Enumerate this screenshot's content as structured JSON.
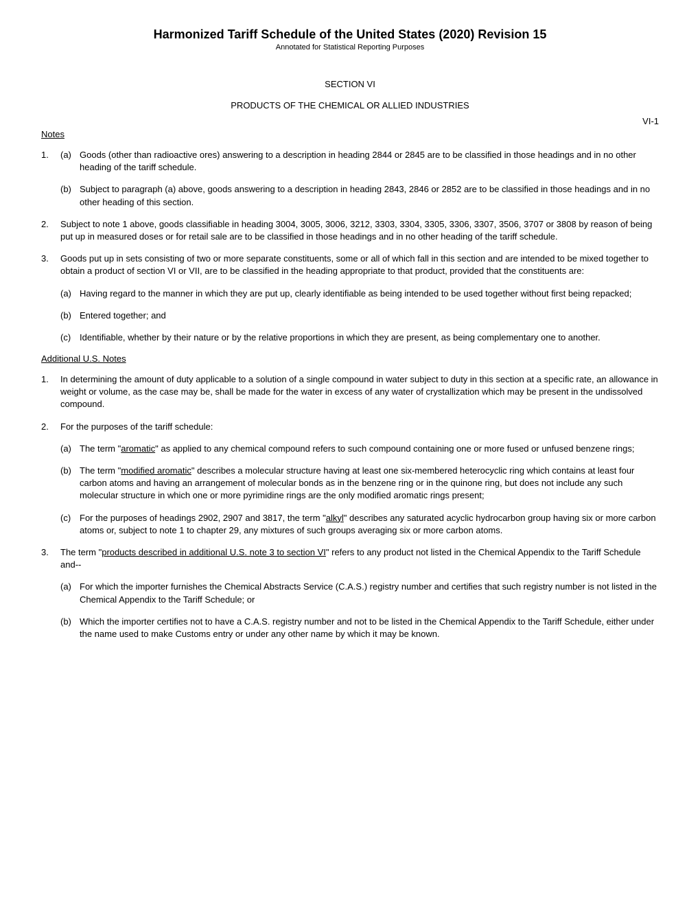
{
  "header": {
    "title": "Harmonized Tariff Schedule of the United States (2020) Revision 15",
    "subtitle": "Annotated for Statistical Reporting Purposes"
  },
  "section": {
    "label": "SECTION VI",
    "heading": "PRODUCTS OF THE CHEMICAL OR ALLIED INDUSTRIES",
    "page_num": "VI-1"
  },
  "notes_heading": "Notes",
  "notes": [
    {
      "num": "1.",
      "subs": [
        {
          "letter": "(a)",
          "text": "Goods (other than radioactive ores) answering to a description in heading 2844 or 2845 are to be classified in those headings and in no other heading of the tariff schedule."
        },
        {
          "letter": "(b)",
          "text": "Subject to paragraph (a) above, goods answering to a description in heading 2843, 2846 or 2852 are to be classified in those headings and in no other heading of this section."
        }
      ]
    },
    {
      "num": "2.",
      "text": "Subject to note 1 above, goods classifiable in heading 3004, 3005, 3006, 3212, 3303, 3304, 3305, 3306, 3307, 3506, 3707 or 3808 by reason of being put up in measured doses or for retail sale are to be classified in those headings and in no other heading of the tariff schedule."
    },
    {
      "num": "3.",
      "text": "Goods put up in sets consisting of two or more separate constituents, some or all of which fall in this section and are intended to be mixed together to obtain a product of section VI or VII, are to be classified in the heading appropriate to that product, provided that the constituents are:",
      "subs": [
        {
          "letter": "(a)",
          "text": "Having regard to the manner in which they are put up, clearly identifiable as being intended to be used together without first being repacked;"
        },
        {
          "letter": "(b)",
          "text": "Entered together; and"
        },
        {
          "letter": "(c)",
          "text": "Identifiable, whether by their nature or by the relative proportions in which they are present, as being complementary one to another."
        }
      ]
    }
  ],
  "additional_heading": "Additional U.S. Notes",
  "additional_notes": [
    {
      "num": "1.",
      "text": "In determining the amount of duty applicable to a solution of a single compound in water subject to duty in this section at a specific rate, an allowance in weight or volume, as the case may be, shall be made for the water in excess of any water of crystallization which may be present in the undissolved compound."
    },
    {
      "num": "2.",
      "text": "For the purposes of the tariff schedule:",
      "subs": [
        {
          "letter": "(a)",
          "prefix": "The term \"",
          "underlined": "aromatic",
          "suffix": "\" as applied to any chemical compound refers to such compound containing one or more fused or unfused benzene rings;"
        },
        {
          "letter": "(b)",
          "prefix": "The term \"",
          "underlined": "modified aromatic",
          "suffix": "\" describes a molecular structure having at least one six-membered heterocyclic ring which contains at least four carbon atoms and having an arrangement of molecular bonds as in the benzene ring or in the quinone ring, but does not include any such molecular structure in which one or more pyrimidine rings are the only modified aromatic rings present;"
        },
        {
          "letter": "(c)",
          "prefix": "For the purposes of headings 2902, 2907 and 3817, the term \"",
          "underlined": "alkyl",
          "suffix": "\" describes any saturated acyclic hydrocarbon group having six or more carbon atoms or, subject to note 1 to chapter 29, any mixtures of such groups averaging six or more carbon atoms."
        }
      ]
    },
    {
      "num": "3.",
      "prefix": "The term \"",
      "underlined": "products described in additional U.S. note 3 to section VI",
      "suffix": "\" refers to any product not listed in the Chemical Appendix to the Tariff Schedule and--",
      "subs": [
        {
          "letter": "(a)",
          "text": "For which the importer furnishes the Chemical Abstracts Service (C.A.S.) registry number and certifies that such registry number is not listed in the Chemical Appendix to the Tariff Schedule; or"
        },
        {
          "letter": "(b)",
          "text": "Which the importer certifies not to have a C.A.S. registry number and not to be listed in the Chemical Appendix to the Tariff Schedule, either under the name used to make Customs entry or under any other name by which it may be known."
        }
      ]
    }
  ]
}
